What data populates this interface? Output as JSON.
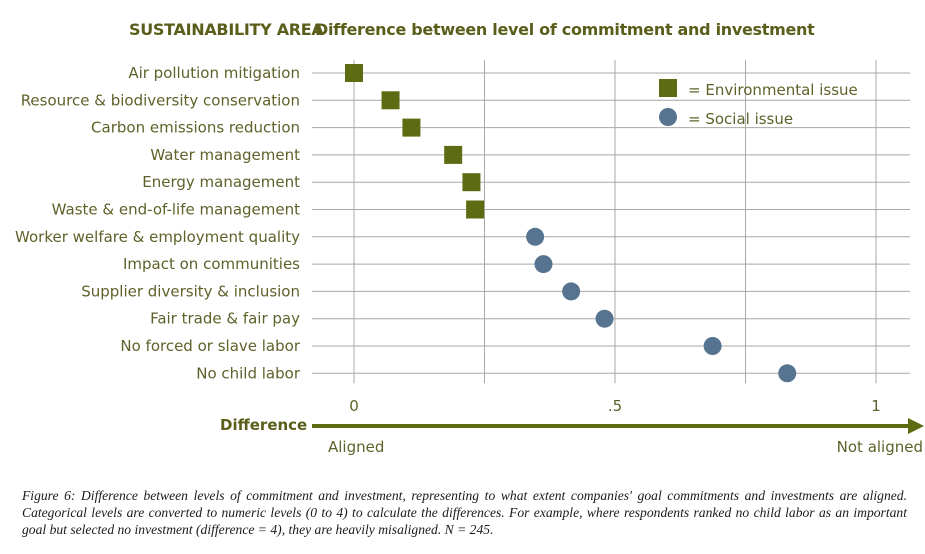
{
  "chart_data": {
    "type": "scatter",
    "header_left": "SUSTAINABILITY AREA",
    "header_right": "Difference between level of commitment and investment",
    "categories": [
      "Air pollution mitigation",
      "Resource & biodiversity conservation",
      "Carbon emissions reduction",
      "Water management",
      "Energy management",
      "Waste & end-of-life management",
      "Worker welfare & employment quality",
      "Impact on communities",
      "Supplier diversity & inclusion",
      "Fair trade & fair pay",
      "No forced or slave labor",
      "No child labor"
    ],
    "series": [
      {
        "name": "Environmental issue",
        "marker": "square",
        "color": "#5d6b12",
        "points": [
          {
            "category": "Air pollution mitigation",
            "value": 0.0
          },
          {
            "category": "Resource & biodiversity conservation",
            "value": 0.07
          },
          {
            "category": "Carbon emissions reduction",
            "value": 0.11
          },
          {
            "category": "Water management",
            "value": 0.19
          },
          {
            "category": "Energy management",
            "value": 0.225
          },
          {
            "category": "Waste & end-of-life management",
            "value": 0.232
          }
        ]
      },
      {
        "name": "Social issue",
        "marker": "circle",
        "color": "#56738f",
        "points": [
          {
            "category": "Worker welfare & employment quality",
            "value": 0.347
          },
          {
            "category": "Impact on communities",
            "value": 0.363
          },
          {
            "category": "Supplier diversity & inclusion",
            "value": 0.416
          },
          {
            "category": "Fair trade & fair pay",
            "value": 0.48
          },
          {
            "category": "No forced or slave labor",
            "value": 0.687
          },
          {
            "category": "No child labor",
            "value": 0.83
          }
        ]
      }
    ],
    "x_ticks": [
      {
        "value": 0,
        "label": "0"
      },
      {
        "value": 0.5,
        "label": ".5"
      },
      {
        "value": 1,
        "label": "1"
      }
    ],
    "x_gridlines": [
      0,
      0.25,
      0.5,
      0.75,
      1
    ],
    "xlim": [
      -0.08,
      1.06
    ],
    "xlabel": "Difference",
    "x_left_label": "Aligned",
    "x_right_label": "Not aligned",
    "legend": {
      "position": "top-right",
      "items": [
        {
          "symbol": "square",
          "label": "= Environmental issue"
        },
        {
          "symbol": "circle",
          "label": "= Social issue"
        }
      ]
    },
    "grid": true
  },
  "caption": "Figure 6: Difference between levels of commitment and investment, representing to what extent companies' goal commitments and investments are aligned. Categorical levels are converted to numeric levels (0 to 4) to calculate the differences. For example, where respondents ranked no child labor as an important goal but selected no investment (difference = 4), they are heavily misaligned. N = 245."
}
